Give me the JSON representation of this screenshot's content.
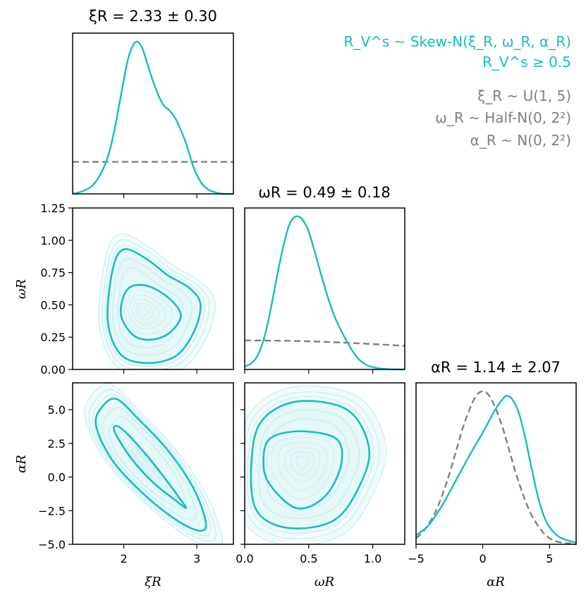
{
  "colors": {
    "posterior": "#17bebb",
    "prior": "#808080",
    "contour_light": "#bfeeee",
    "contour_bg": "#f2fbfb"
  },
  "legend": {
    "model_lines": [
      "R_V^s ~ Skew-N(ξ_R, ω_R, α_R)",
      "R_V^s ≥ 0.5"
    ],
    "prior_lines": [
      "ξ_R ~ U(1, 5)",
      "ω_R ~ Half-N(0, 2²)",
      "α_R ~ N(0, 2²)"
    ]
  },
  "chart_data": {
    "type": "corner",
    "parameters": [
      {
        "name": "xi_R",
        "label": "ξR",
        "title": "ξR = 2.33 ± 0.30",
        "median": 2.33,
        "err": 0.3,
        "range": [
          1.3,
          3.5
        ],
        "ticks": [
          2,
          3
        ],
        "tick_labels": [
          "2",
          "3"
        ],
        "posterior": {
          "x": [
            1.3,
            1.45,
            1.6,
            1.75,
            1.85,
            1.95,
            2.05,
            2.12,
            2.18,
            2.25,
            2.32,
            2.4,
            2.48,
            2.55,
            2.62,
            2.7,
            2.78,
            2.86,
            2.95,
            3.05,
            3.15,
            3.25,
            3.35,
            3.45,
            3.5
          ],
          "y": [
            0.0,
            0.02,
            0.07,
            0.2,
            0.37,
            0.62,
            0.87,
            0.97,
            1.0,
            0.96,
            0.86,
            0.74,
            0.64,
            0.58,
            0.55,
            0.5,
            0.42,
            0.32,
            0.18,
            0.08,
            0.03,
            0.01,
            0.0,
            0.0,
            0.0
          ]
        },
        "prior": {
          "x": [
            1.3,
            3.5
          ],
          "y": [
            0.21,
            0.21
          ]
        }
      },
      {
        "name": "omega_R",
        "label": "ωR",
        "title": "ωR = 0.49 ± 0.18",
        "median": 0.49,
        "err": 0.18,
        "range": [
          0.0,
          1.25
        ],
        "ticks": [
          0.0,
          0.25,
          0.5,
          0.75,
          1.0,
          1.25
        ],
        "tick_labels": [
          "0.00",
          "0.25",
          "0.50",
          "0.75",
          "1.00",
          "1.25"
        ],
        "bottom_ticks": [
          0.0,
          0.5,
          1.0
        ],
        "bottom_tick_labels": [
          "0.0",
          "0.5",
          "1.0"
        ],
        "posterior": {
          "x": [
            0.0,
            0.05,
            0.1,
            0.15,
            0.2,
            0.25,
            0.3,
            0.35,
            0.4,
            0.45,
            0.5,
            0.55,
            0.6,
            0.65,
            0.7,
            0.75,
            0.8,
            0.85,
            0.9,
            0.95,
            1.0,
            1.05,
            1.1,
            1.15,
            1.25
          ],
          "y": [
            0.02,
            0.04,
            0.09,
            0.2,
            0.38,
            0.6,
            0.8,
            0.95,
            1.0,
            0.98,
            0.9,
            0.76,
            0.61,
            0.47,
            0.35,
            0.26,
            0.18,
            0.11,
            0.06,
            0.03,
            0.015,
            0.007,
            0.003,
            0.001,
            0.0
          ]
        },
        "prior": {
          "x": [
            0.0,
            0.25,
            0.5,
            0.75,
            1.0,
            1.25
          ],
          "y": [
            0.19,
            0.188,
            0.184,
            0.176,
            0.166,
            0.154
          ]
        }
      },
      {
        "name": "alpha_R",
        "label": "αR",
        "title": "αR = 1.14 ± 2.07",
        "median": 1.14,
        "err": 2.07,
        "range": [
          -5.0,
          7.0
        ],
        "ticks": [
          -5.0,
          -2.5,
          0.0,
          2.5,
          5.0
        ],
        "tick_labels": [
          "−5.0",
          "−2.5",
          "0.0",
          "2.5",
          "5.0"
        ],
        "bottom_ticks": [
          -5,
          0,
          5
        ],
        "bottom_tick_labels": [
          "−5",
          "0",
          "5"
        ],
        "posterior": {
          "x": [
            -5.0,
            -4.5,
            -4.0,
            -3.0,
            -2.0,
            -1.0,
            0.0,
            0.5,
            1.0,
            1.5,
            1.8,
            2.2,
            2.7,
            3.2,
            3.7,
            4.2,
            4.7,
            5.2,
            5.7,
            6.2,
            7.0
          ],
          "y": [
            0.06,
            0.09,
            0.13,
            0.26,
            0.42,
            0.58,
            0.73,
            0.81,
            0.89,
            0.95,
            0.97,
            0.95,
            0.86,
            0.69,
            0.48,
            0.29,
            0.16,
            0.09,
            0.05,
            0.03,
            0.01
          ]
        },
        "prior": {
          "x": [
            -5.0,
            -4.5,
            -4.0,
            -3.5,
            -3.0,
            -2.5,
            -2.0,
            -1.5,
            -1.0,
            -0.5,
            0.0,
            0.5,
            1.0,
            1.5,
            2.0,
            2.5,
            3.0,
            3.5,
            4.0,
            4.5,
            5.0,
            5.5,
            6.0,
            6.5,
            7.0
          ],
          "y": [
            0.04,
            0.08,
            0.14,
            0.22,
            0.33,
            0.46,
            0.61,
            0.76,
            0.88,
            0.97,
            1.0,
            0.97,
            0.88,
            0.76,
            0.61,
            0.46,
            0.33,
            0.22,
            0.14,
            0.08,
            0.04,
            0.02,
            0.01,
            0.005,
            0.0
          ]
        }
      }
    ],
    "pairs": [
      {
        "x": "xi_R",
        "y": "omega_R",
        "inner": [
          [
            2.05,
            0.62
          ],
          [
            2.3,
            0.65
          ],
          [
            2.6,
            0.56
          ],
          [
            2.78,
            0.42
          ],
          [
            2.62,
            0.28
          ],
          [
            2.35,
            0.23
          ],
          [
            2.12,
            0.27
          ],
          [
            1.96,
            0.43
          ]
        ],
        "outer": [
          [
            1.85,
            0.78
          ],
          [
            2.0,
            0.93
          ],
          [
            2.3,
            0.86
          ],
          [
            2.6,
            0.73
          ],
          [
            2.9,
            0.63
          ],
          [
            3.05,
            0.5
          ],
          [
            2.95,
            0.28
          ],
          [
            2.7,
            0.1
          ],
          [
            2.3,
            0.05
          ],
          [
            1.95,
            0.12
          ],
          [
            1.78,
            0.38
          ]
        ],
        "peak": [
          2.25,
          0.45
        ]
      },
      {
        "x": "xi_R",
        "y": "alpha_R",
        "inner": [
          [
            1.9,
            3.8
          ],
          [
            2.05,
            3.2
          ],
          [
            2.3,
            1.7
          ],
          [
            2.55,
            0.0
          ],
          [
            2.78,
            -1.7
          ],
          [
            2.85,
            -2.3
          ],
          [
            2.7,
            -1.7
          ],
          [
            2.4,
            -0.4
          ],
          [
            2.1,
            1.4
          ],
          [
            1.88,
            3.3
          ]
        ],
        "outer": [
          [
            1.7,
            5.2
          ],
          [
            1.9,
            5.8
          ],
          [
            2.2,
            4.3
          ],
          [
            2.6,
            2.0
          ],
          [
            2.95,
            -0.8
          ],
          [
            3.12,
            -3.3
          ],
          [
            3.05,
            -4.0
          ],
          [
            2.75,
            -3.3
          ],
          [
            2.3,
            -1.4
          ],
          [
            1.85,
            1.2
          ],
          [
            1.62,
            3.8
          ]
        ],
        "peak": [
          2.22,
          1.4
        ]
      },
      {
        "x": "omega_R",
        "y": "alpha_R",
        "inner": [
          [
            0.22,
            3.0
          ],
          [
            0.45,
            3.4
          ],
          [
            0.72,
            2.8
          ],
          [
            0.75,
            0.8
          ],
          [
            0.62,
            -1.5
          ],
          [
            0.4,
            -2.3
          ],
          [
            0.18,
            -0.3
          ],
          [
            0.15,
            1.8
          ]
        ],
        "outer": [
          [
            0.12,
            4.0
          ],
          [
            0.4,
            5.6
          ],
          [
            0.8,
            5.0
          ],
          [
            0.97,
            2.2
          ],
          [
            0.9,
            -0.6
          ],
          [
            0.7,
            -3.2
          ],
          [
            0.35,
            -3.8
          ],
          [
            0.1,
            -2.6
          ],
          [
            0.05,
            0.5
          ]
        ],
        "peak": [
          0.45,
          1.2
        ]
      }
    ]
  }
}
